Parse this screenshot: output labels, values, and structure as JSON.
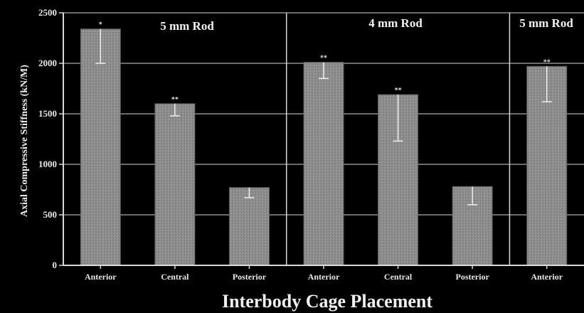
{
  "chart_data": {
    "type": "bar",
    "xlabel": "Interbody Cage Placement",
    "ylabel": "Axial Compressive Stiffness (kN/M)",
    "ylim": [
      0,
      2500
    ],
    "yticks": [
      0,
      500,
      1000,
      1500,
      2000,
      2500
    ],
    "grid": true,
    "groups": [
      "5 mm Rod",
      "4 mm Rod",
      "5 mm Rod"
    ],
    "categories": [
      "Anterior",
      "Central",
      "Posterior",
      "Anterior",
      "Central",
      "Posterior",
      "Anterior"
    ],
    "values": [
      2340,
      1600,
      770,
      2010,
      1690,
      780,
      1970
    ],
    "error_low": [
      2000,
      1480,
      670,
      1850,
      1230,
      600,
      1620
    ],
    "error_high": [
      2340,
      1600,
      770,
      2010,
      1690,
      780,
      1970
    ],
    "markers": [
      "*",
      "**",
      "",
      "**",
      "**",
      "",
      "**"
    ],
    "colors": {
      "background": "#000000",
      "bar": "#8a8a8a",
      "grid": "#d8d8d8",
      "text": "#eeeeee"
    }
  }
}
